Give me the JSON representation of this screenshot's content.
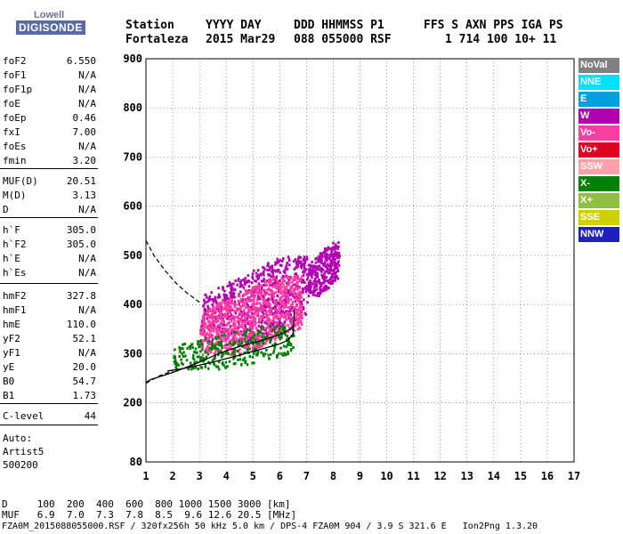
{
  "logo": {
    "line1": "Lowell",
    "line2": "DIGISONDE"
  },
  "header": {
    "labels": [
      "Station",
      "YYYY DAY",
      "DDD HHMMSS P1",
      "FFS S AXN PPS IGA PS"
    ],
    "values": [
      "Fortaleza",
      "2015 Mar29",
      "088 055000 RSF",
      "1 714 100 10+ 11"
    ]
  },
  "params": [
    {
      "name": "foF2",
      "value": "6.550"
    },
    {
      "name": "foF1",
      "value": "N/A"
    },
    {
      "name": "foF1p",
      "value": "N/A"
    },
    {
      "name": "foE",
      "value": "N/A"
    },
    {
      "name": "foEp",
      "value": "0.46"
    },
    {
      "name": "fxI",
      "value": "7.00"
    },
    {
      "name": "foEs",
      "value": "N/A"
    },
    {
      "name": "fmin",
      "value": "3.20"
    },
    {
      "name": "MUF(D)",
      "value": "20.51"
    },
    {
      "name": "M(D)",
      "value": "3.13"
    },
    {
      "name": "D",
      "value": "N/A"
    },
    {
      "name": "h`F",
      "value": "305.0"
    },
    {
      "name": "h`F2",
      "value": "305.0"
    },
    {
      "name": "h`E",
      "value": "N/A"
    },
    {
      "name": "h`Es",
      "value": "N/A"
    },
    {
      "name": "hmF2",
      "value": "327.8"
    },
    {
      "name": "hmF1",
      "value": "N/A"
    },
    {
      "name": "hmE",
      "value": "110.0"
    },
    {
      "name": "yF2",
      "value": "52.1"
    },
    {
      "name": "yF1",
      "value": "N/A"
    },
    {
      "name": "yE",
      "value": "20.0"
    },
    {
      "name": "B0",
      "value": "54.7"
    },
    {
      "name": "B1",
      "value": "1.73"
    },
    {
      "name": "C-level",
      "value": "44"
    }
  ],
  "auto": {
    "line1": "Auto:",
    "line2": "Artist5",
    "line3": "500200"
  },
  "legend": [
    {
      "label": "NoVal",
      "color": "#808080"
    },
    {
      "label": "NNE",
      "color": "#00e0ff"
    },
    {
      "label": "E",
      "color": "#00a0e0"
    },
    {
      "label": "W",
      "color": "#b000b0"
    },
    {
      "label": "Vo-",
      "color": "#ff3ca0"
    },
    {
      "label": "Vo+",
      "color": "#e00020"
    },
    {
      "label": "SSW",
      "color": "#ffa0a8"
    },
    {
      "label": "X-",
      "color": "#008000"
    },
    {
      "label": "X+",
      "color": "#90c040"
    },
    {
      "label": "SSE",
      "color": "#d0d000"
    },
    {
      "label": "NNW",
      "color": "#2020c0"
    }
  ],
  "bottom": {
    "line1": "D     100  200  400  600  800 1000 1500 3000 [km]",
    "line2": "MUF   6.9  7.0  7.3  7.8  8.5  9.6 12.6 20.5 [MHz]",
    "line3": "FZA0M_2015088055000.RSF / 320fx256h 50 kHz 5.0 km / DPS-4 FZA0M 904 / 3.9 S 321.6 E   Ion2Png 1.3.20"
  },
  "chart_data": {
    "type": "scatter",
    "title": "",
    "xlabel": "",
    "ylabel": "",
    "xlim": [
      1,
      17
    ],
    "ylim": [
      80,
      900
    ],
    "x_ticks": [
      1,
      2,
      3,
      4,
      5,
      6,
      7,
      8,
      9,
      10,
      11,
      12,
      13,
      14,
      15,
      16,
      17
    ],
    "y_ticks": [
      80,
      200,
      300,
      400,
      500,
      600,
      700,
      800,
      900
    ],
    "grid": "dotted",
    "legend_position": "right",
    "trace_o_curve": {
      "x": [
        1.8,
        2.2,
        2.6,
        3.0,
        3.5,
        4.0,
        4.5,
        5.0,
        5.5,
        6.0,
        6.3,
        6.5,
        6.55
      ],
      "y": [
        265,
        268,
        272,
        277,
        283,
        290,
        297,
        305,
        312,
        320,
        327,
        340,
        390
      ]
    },
    "profile_curve": {
      "x": [
        1.0,
        1.2,
        1.5,
        2.0,
        2.5,
        3.0,
        3.5,
        4.0,
        4.5,
        5.0,
        5.5,
        6.0,
        6.4,
        6.55
      ],
      "y": [
        242,
        248,
        253,
        262,
        272,
        283,
        295,
        306,
        315,
        322,
        330,
        339,
        350,
        360
      ]
    },
    "dashed_upper": {
      "x": [
        1.0,
        1.3,
        1.7,
        2.1,
        2.5,
        2.8,
        3.0
      ],
      "y": [
        530,
        500,
        470,
        445,
        425,
        413,
        405
      ]
    },
    "dashed_lower": {
      "x": [
        1.0,
        1.5,
        2.0
      ],
      "y": [
        240,
        255,
        265
      ]
    },
    "echo_clusters": [
      {
        "series": "W",
        "x_range": [
          3.0,
          7.0
        ],
        "y_range": [
          320,
          500
        ],
        "density": "high"
      },
      {
        "series": "Vo-",
        "x_range": [
          3.0,
          6.8
        ],
        "y_range": [
          300,
          460
        ],
        "density": "high"
      },
      {
        "series": "X-",
        "x_range": [
          2.0,
          6.5
        ],
        "y_range": [
          270,
          360
        ],
        "density": "medium"
      },
      {
        "series": "W",
        "x_range": [
          7.0,
          8.2
        ],
        "y_range": [
          420,
          530
        ],
        "density": "medium"
      }
    ]
  }
}
